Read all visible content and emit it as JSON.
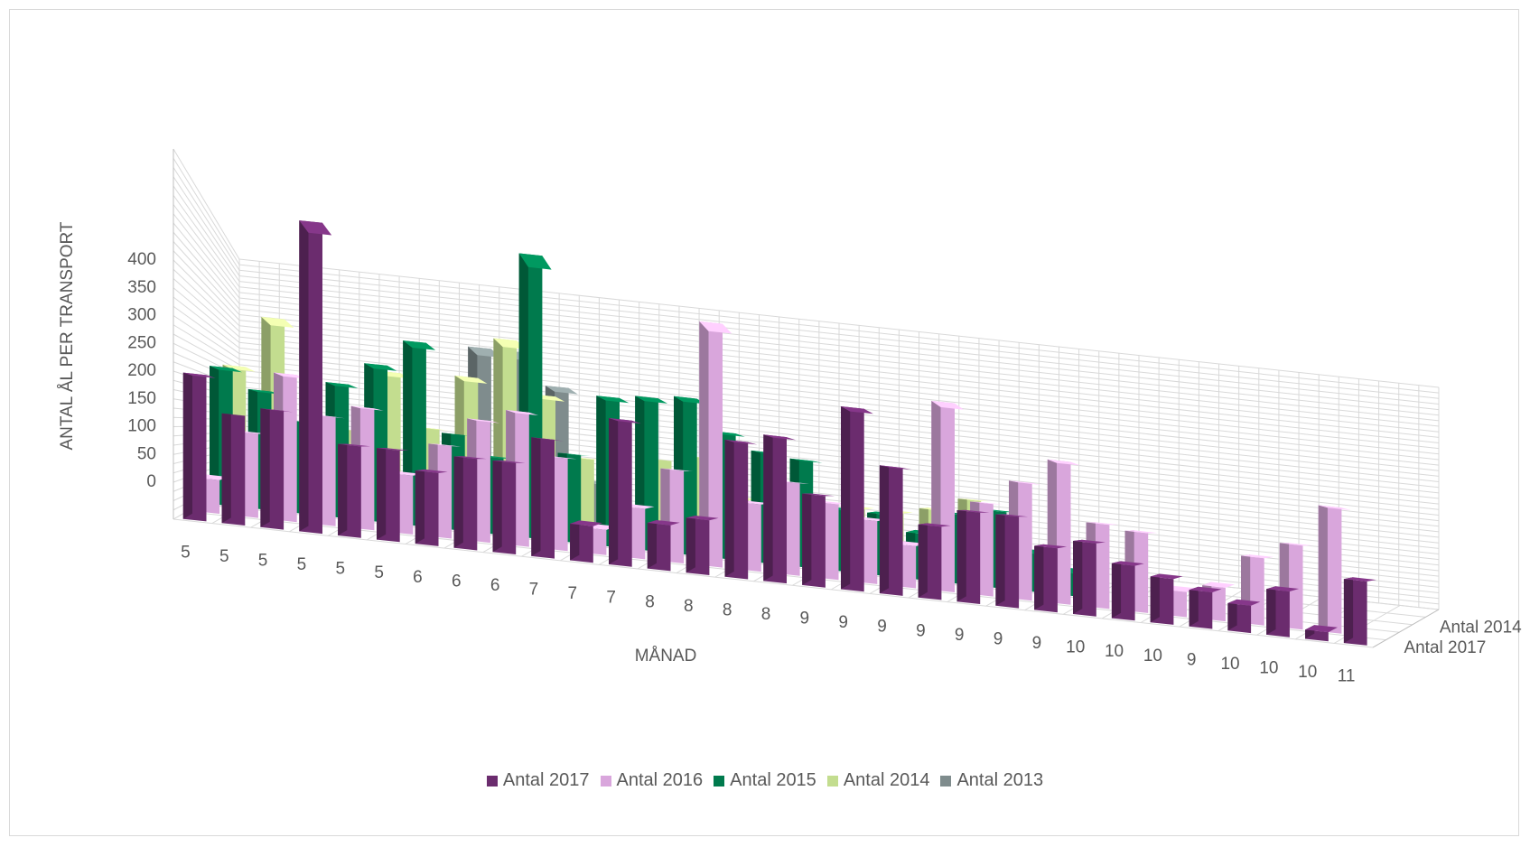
{
  "chart_data": {
    "type": "bar",
    "subtype": "3d-column",
    "title": "",
    "xlabel": "MÅNAD",
    "ylabel": "ANTAL ÅL PER TRANSPORT",
    "ylim": [
      0,
      400
    ],
    "yticks": [
      0,
      50,
      100,
      150,
      200,
      250,
      300,
      350,
      400
    ],
    "grid": true,
    "legend_position": "bottom",
    "categories": [
      "5",
      "5",
      "5",
      "5",
      "5",
      "5",
      "6",
      "6",
      "6",
      "7",
      "7",
      "7",
      "8",
      "8",
      "8",
      "8",
      "9",
      "9",
      "9",
      "9",
      "9",
      "9",
      "9",
      "10",
      "10",
      "10",
      "9",
      "10",
      "10",
      "10",
      "11"
    ],
    "depth_labels": [
      "Antal 2014",
      "Antal 2017"
    ],
    "series": [
      {
        "name": "Antal 2017",
        "color": "#6b2c6e",
        "values": [
          160,
          120,
          130,
          340,
          100,
          100,
          80,
          100,
          100,
          130,
          40,
          160,
          50,
          60,
          150,
          160,
          100,
          200,
          140,
          80,
          100,
          100,
          70,
          80,
          60,
          50,
          40,
          30,
          50,
          10,
          70
        ]
      },
      {
        "name": "Antal 2016",
        "color": "#d9a6dc",
        "values": [
          40,
          100,
          175,
          130,
          145,
          70,
          110,
          145,
          160,
          110,
          30,
          60,
          110,
          290,
          80,
          110,
          90,
          75,
          50,
          225,
          110,
          140,
          170,
          100,
          95,
          30,
          40,
          80,
          100,
          150,
          0
        ]
      },
      {
        "name": "Antal 2015",
        "color": "#007a4d",
        "values": [
          180,
          155,
          120,
          175,
          205,
          240,
          125,
          100,
          370,
          115,
          195,
          200,
          205,
          165,
          145,
          140,
          80,
          80,
          60,
          90,
          100,
          50,
          30,
          0,
          0,
          0,
          0,
          0,
          0,
          0,
          0
        ]
      },
      {
        "name": "Antal 2014",
        "color": "#c3dd8f",
        "values": [
          190,
          265,
          125,
          115,
          205,
          130,
          210,
          270,
          195,
          110,
          45,
          120,
          130,
          75,
          65,
          60,
          80,
          80,
          90,
          110,
          90,
          0,
          0,
          0,
          0,
          0,
          0,
          0,
          0,
          0,
          0
        ]
      },
      {
        "name": "Antal 2013",
        "color": "#7f8c8d",
        "values": [
          0,
          0,
          0,
          0,
          0,
          0,
          270,
          270,
          220,
          70,
          0,
          0,
          140,
          0,
          0,
          0,
          0,
          0,
          0,
          60,
          0,
          0,
          0,
          0,
          0,
          0,
          0,
          0,
          0,
          0,
          0
        ]
      }
    ]
  }
}
